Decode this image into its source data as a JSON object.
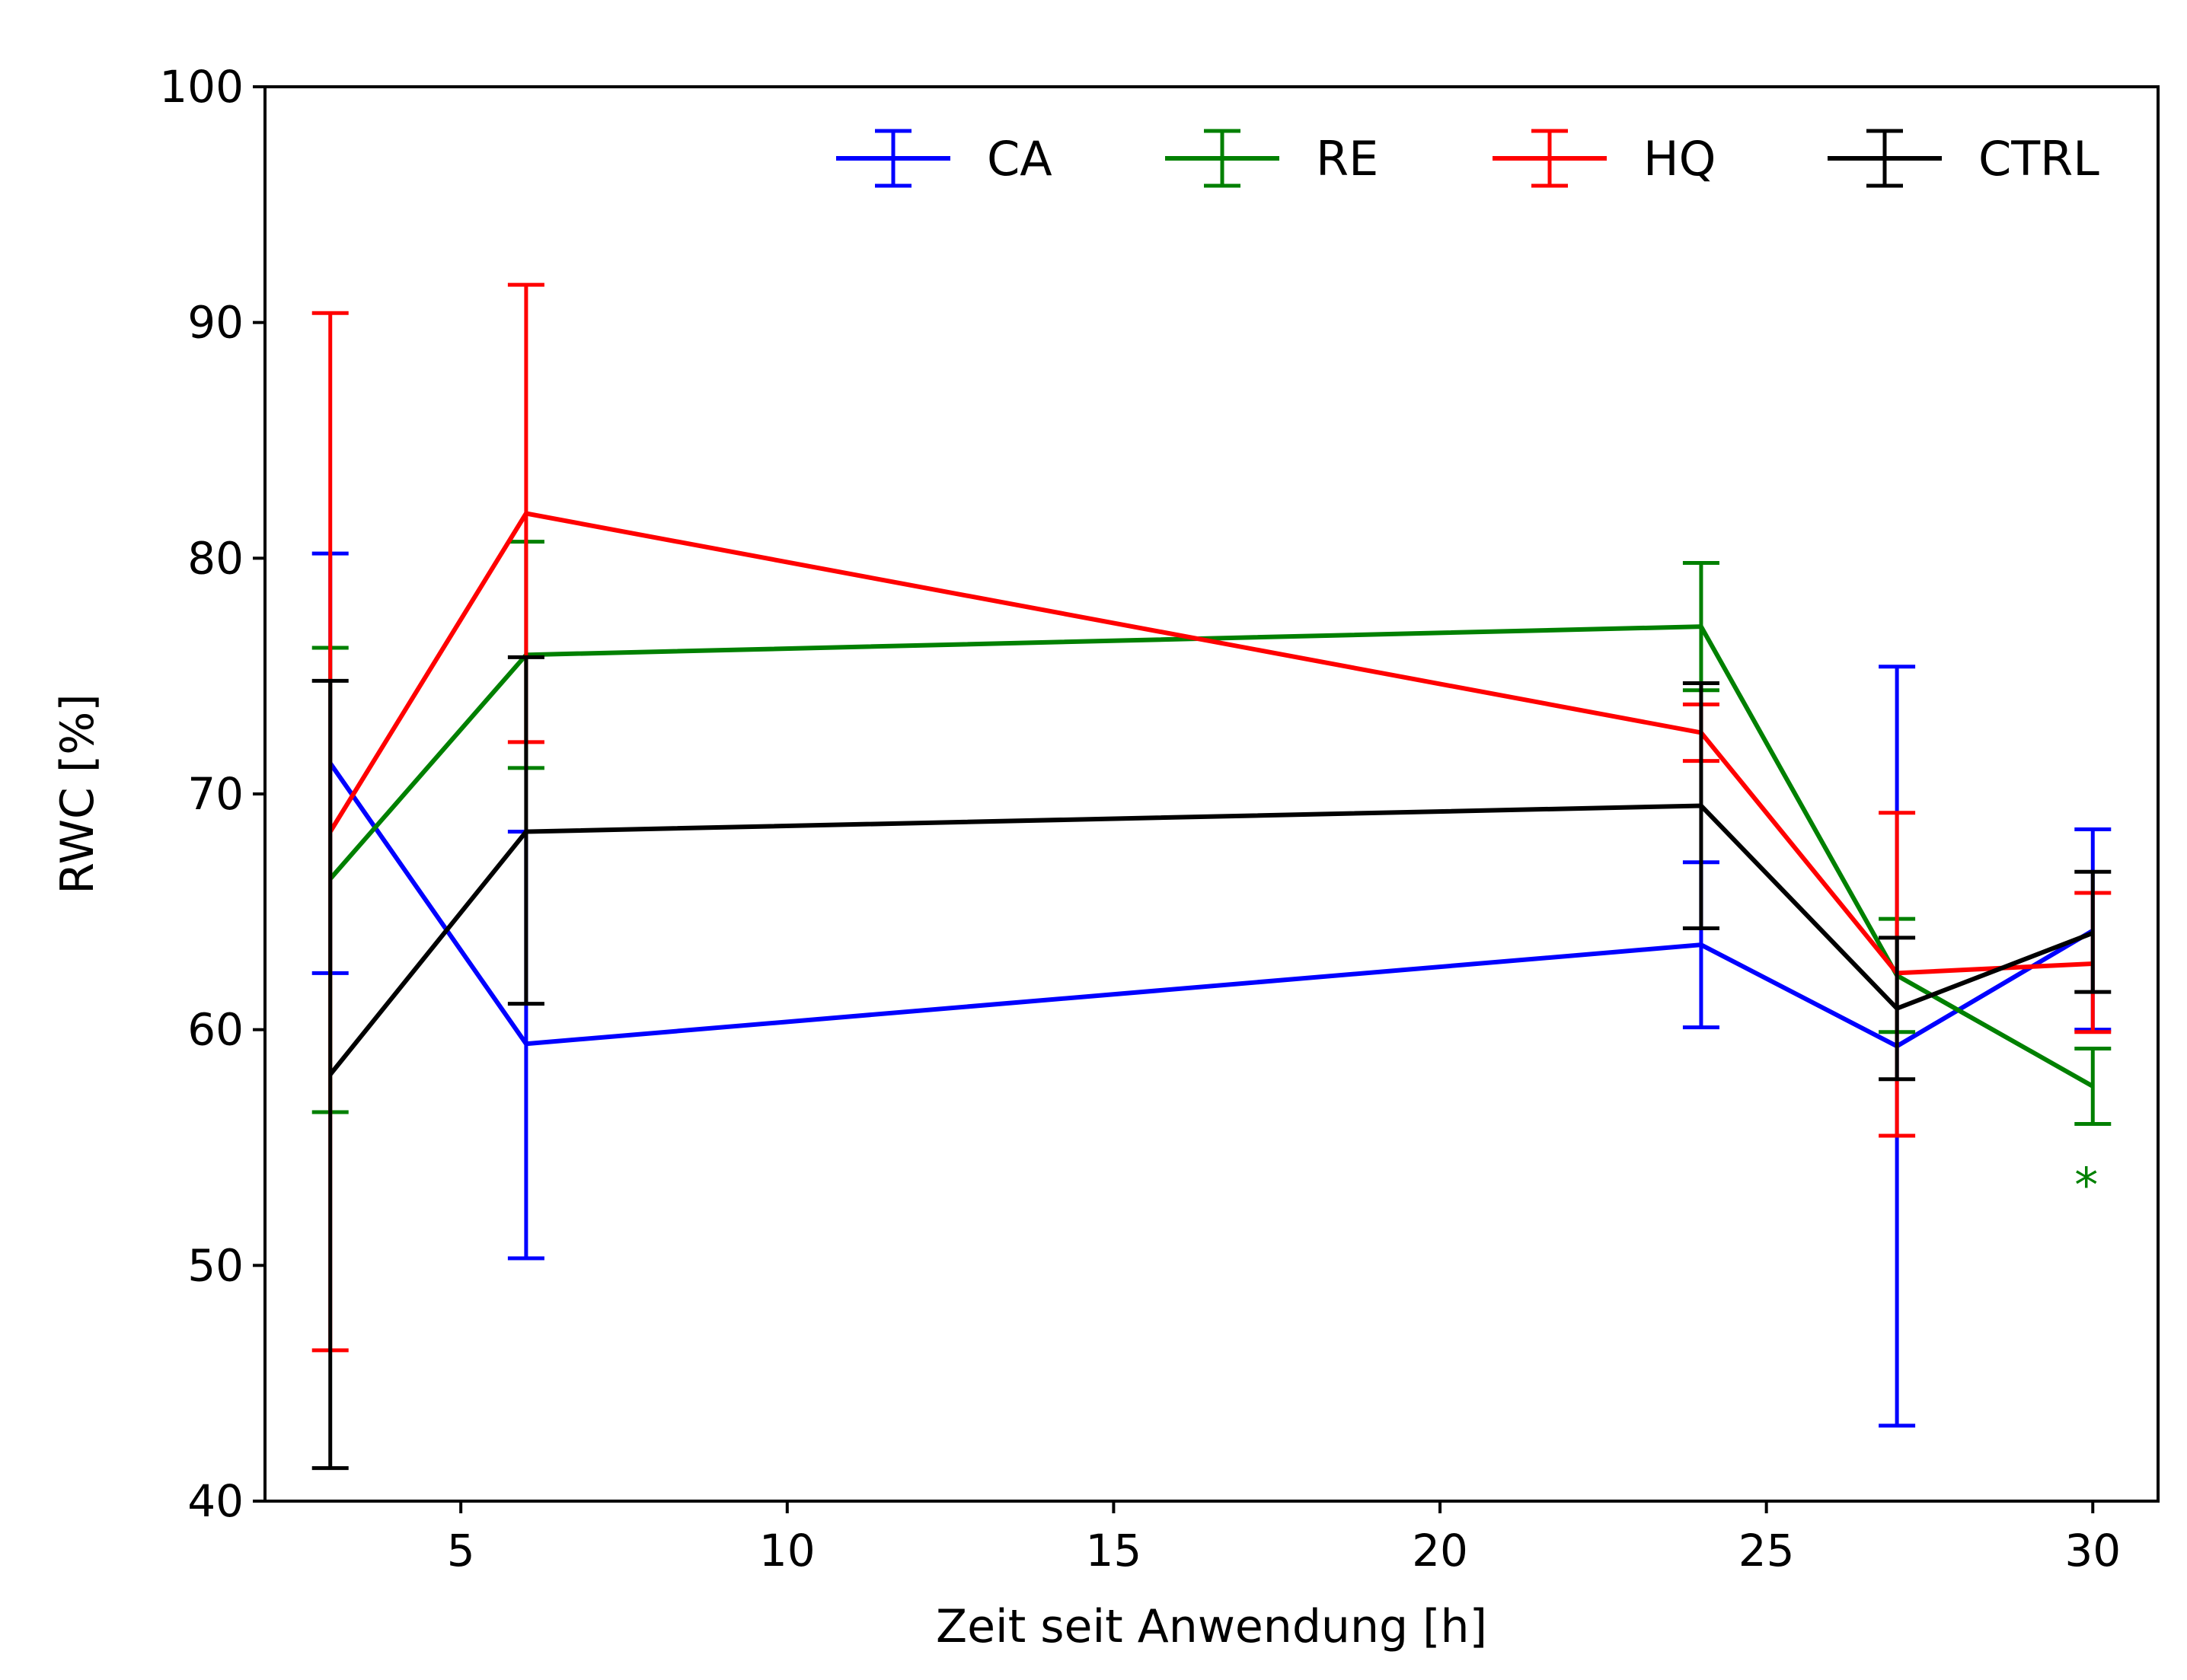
{
  "chart_data": {
    "type": "line",
    "title": "",
    "xlabel": "Zeit seit Anwendung [h]",
    "ylabel": "RWC [%]",
    "xlim": [
      2,
      31
    ],
    "ylim": [
      40,
      100
    ],
    "xticks": [
      5,
      10,
      15,
      20,
      25,
      30
    ],
    "xtick_labels": [
      "5",
      "10",
      "15",
      "20",
      "25",
      "30"
    ],
    "yticks": [
      40,
      50,
      60,
      70,
      80,
      90,
      100
    ],
    "ytick_labels": [
      "40",
      "50",
      "60",
      "70",
      "80",
      "90",
      "100"
    ],
    "grid": false,
    "legend_position": "top",
    "x": [
      3,
      6,
      24,
      27,
      30
    ],
    "series": [
      {
        "name": "CA",
        "color": "#0000ff",
        "values": [
          71.3,
          59.4,
          63.6,
          59.3,
          64.2
        ],
        "error_low": [
          62.4,
          50.3,
          60.1,
          43.2,
          60.0
        ],
        "error_high": [
          80.2,
          68.4,
          67.1,
          75.4,
          68.5
        ]
      },
      {
        "name": "RE",
        "color": "#008000",
        "values": [
          66.4,
          75.9,
          77.1,
          62.3,
          57.6
        ],
        "error_low": [
          56.5,
          71.1,
          74.4,
          59.9,
          56.0
        ],
        "error_high": [
          76.2,
          80.7,
          79.8,
          64.7,
          59.2
        ]
      },
      {
        "name": "HQ",
        "color": "#ff0000",
        "values": [
          68.4,
          81.9,
          72.6,
          62.4,
          62.8
        ],
        "error_low": [
          46.4,
          72.2,
          71.4,
          55.5,
          59.9
        ],
        "error_high": [
          90.4,
          91.6,
          73.8,
          69.2,
          65.8
        ]
      },
      {
        "name": "CTRL",
        "color": "#000000",
        "values": [
          58.1,
          68.4,
          69.5,
          60.9,
          64.1
        ],
        "error_low": [
          41.4,
          61.1,
          64.3,
          57.9,
          61.6
        ],
        "error_high": [
          74.8,
          75.8,
          74.7,
          63.9,
          66.7
        ]
      }
    ],
    "annotations": [
      {
        "text": "*",
        "x": 29.9,
        "y": 54,
        "color": "#008000"
      }
    ]
  }
}
